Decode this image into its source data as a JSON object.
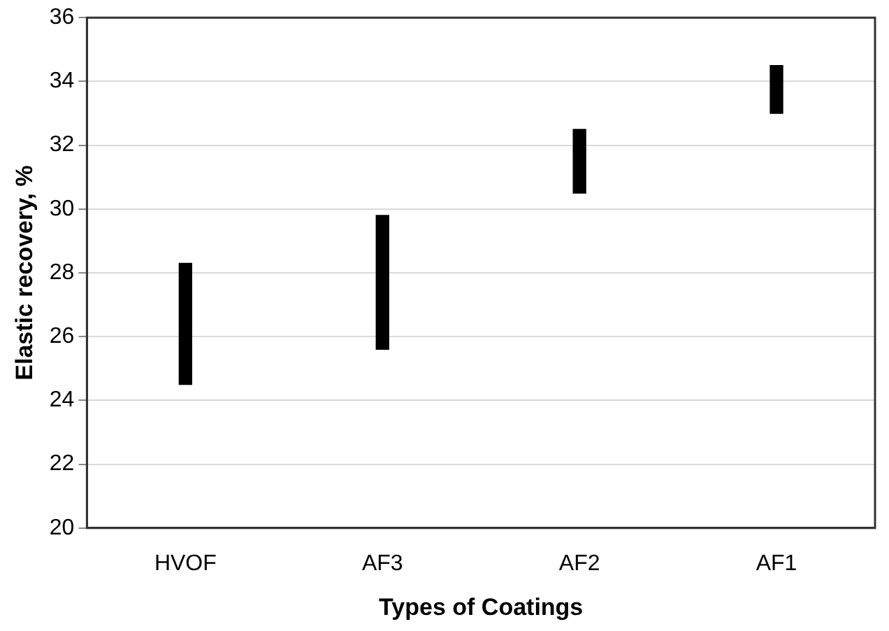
{
  "chart_data": {
    "type": "bar",
    "xlabel": "Types of Coatings",
    "ylabel": "Elastic recovery, %",
    "categories": [
      "HVOF",
      "AF3",
      "AF2",
      "AF1"
    ],
    "base": [
      24.5,
      25.6,
      30.5,
      33.0
    ],
    "values": [
      3.8,
      4.2,
      2.0,
      1.5
    ],
    "color": "#000000",
    "ylim": [
      20,
      36
    ],
    "yticks": [
      20,
      22,
      24,
      26,
      28,
      30,
      32,
      34,
      36
    ],
    "grid": "y",
    "legend": false
  }
}
